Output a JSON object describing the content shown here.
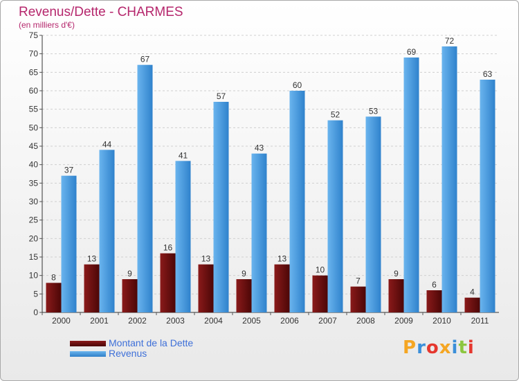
{
  "chart_data": {
    "type": "bar",
    "title": "Revenus/Dette - CHARMES",
    "subtitle": "(en milliers d'€)",
    "categories": [
      "2000",
      "2001",
      "2002",
      "2003",
      "2004",
      "2005",
      "2006",
      "2007",
      "2008",
      "2009",
      "2010",
      "2011"
    ],
    "series": [
      {
        "name": "Montant de la Dette",
        "color": "#6e0e0e",
        "values": [
          8,
          13,
          9,
          16,
          13,
          9,
          13,
          10,
          7,
          9,
          6,
          4
        ]
      },
      {
        "name": "Revenus",
        "color": "#4a9de0",
        "values": [
          37,
          44,
          67,
          41,
          57,
          43,
          60,
          52,
          53,
          69,
          72,
          63
        ]
      }
    ],
    "yticks": [
      0,
      5,
      10,
      15,
      20,
      25,
      30,
      35,
      40,
      45,
      50,
      55,
      60,
      65,
      70,
      75
    ],
    "ylim": [
      0,
      75
    ],
    "grid": true,
    "legend_position": "bottom-left"
  },
  "logo": {
    "text": "Proxiti",
    "colors": [
      "#f5a623",
      "#3b8fd9",
      "#e5372e",
      "#f5a623",
      "#3b8fd9",
      "#8cc63f",
      "#e5372e"
    ]
  }
}
